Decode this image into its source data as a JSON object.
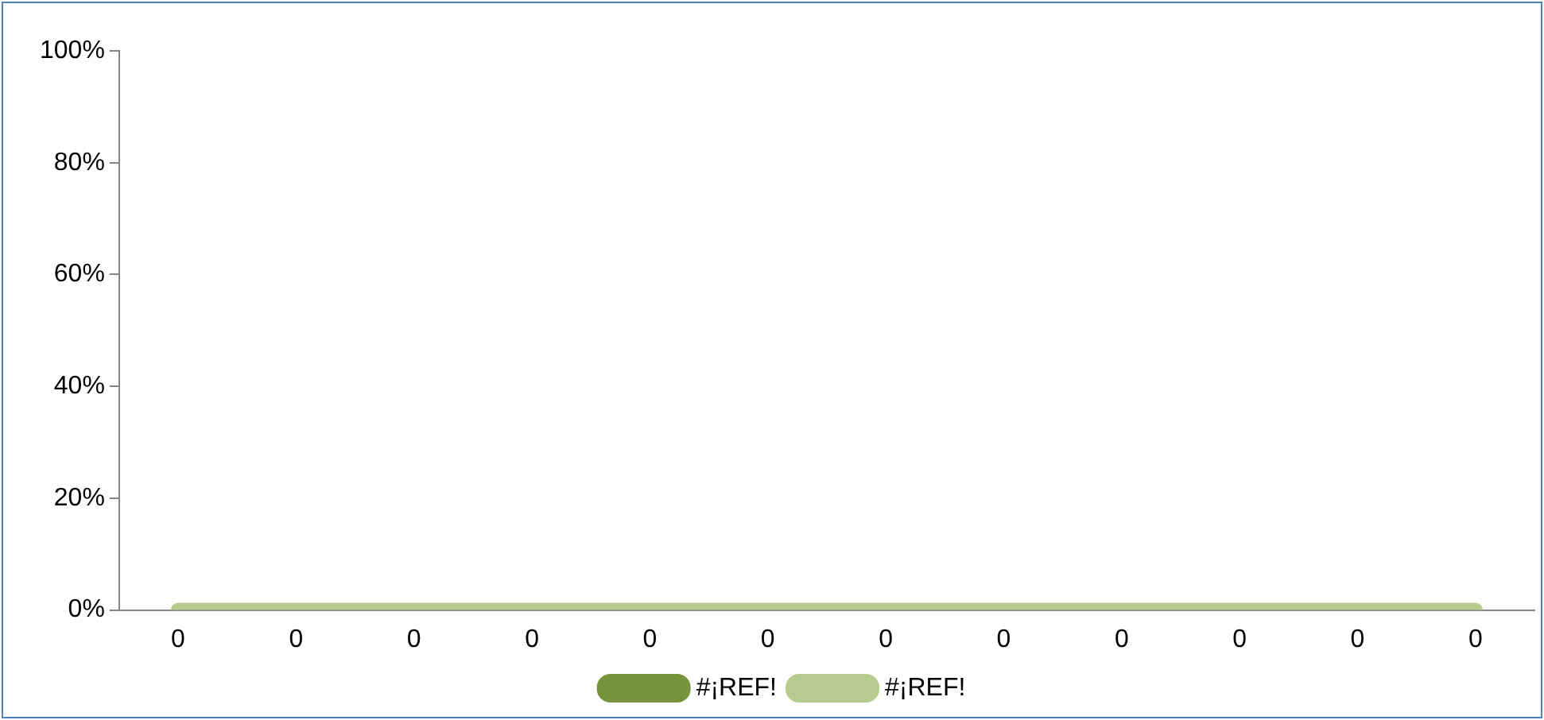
{
  "chart_data": {
    "type": "line",
    "categories": [
      "0",
      "0",
      "0",
      "0",
      "0",
      "0",
      "0",
      "0",
      "0",
      "0",
      "0",
      "0"
    ],
    "series": [
      {
        "name": "#¡REF!",
        "color": "#77933c",
        "values": [
          null,
          null,
          null,
          null,
          null,
          null,
          null,
          null,
          null,
          null,
          null,
          null
        ]
      },
      {
        "name": "#¡REF!",
        "color": "#b5cc8e",
        "values": [
          0,
          0,
          0,
          0,
          0,
          0,
          0,
          0,
          0,
          0,
          0,
          0
        ]
      }
    ],
    "ylim": [
      0,
      100
    ],
    "yticks": [
      {
        "value": 0,
        "label": "0%"
      },
      {
        "value": 20,
        "label": "20%"
      },
      {
        "value": 40,
        "label": "40%"
      },
      {
        "value": 60,
        "label": "60%"
      },
      {
        "value": 80,
        "label": "80%"
      },
      {
        "value": 100,
        "label": "100%"
      }
    ],
    "grid": false,
    "legend": "bottom",
    "marker": "none",
    "line_style": "solid"
  }
}
